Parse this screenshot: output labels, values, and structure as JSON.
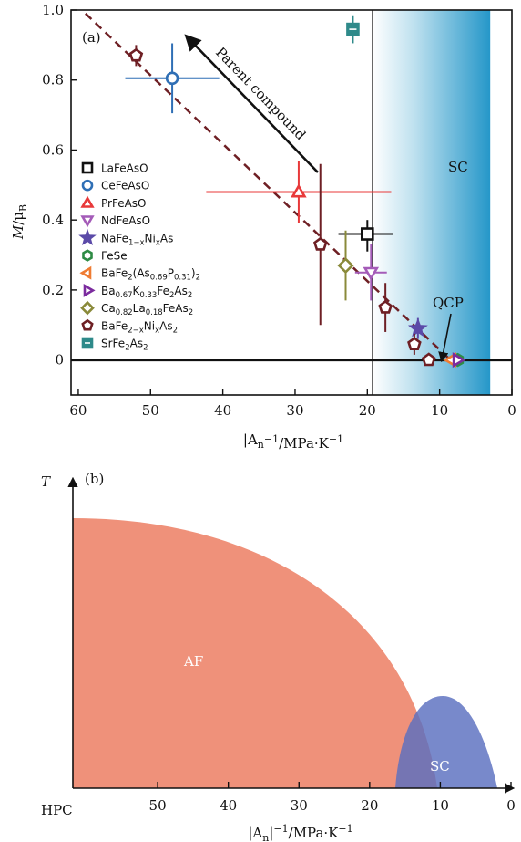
{
  "chart_data": [
    {
      "type": "scatter",
      "panel": "(a)",
      "ylabel": "M/μB",
      "xlabel": "|An|−1/MPa·K−1",
      "xlim": [
        61,
        0
      ],
      "ylim": [
        -0.1,
        1.0
      ],
      "x_reversed": true,
      "xticks": [
        60,
        50,
        40,
        30,
        20,
        10,
        0
      ],
      "xtick_labels": [
        "60",
        "50",
        "40",
        "30",
        "20",
        "10",
        "0"
      ],
      "yticks": [
        0,
        0.2,
        0.4,
        0.6,
        0.8,
        1.0
      ],
      "ytick_labels": [
        "0",
        "0.2",
        "0.4",
        "0.6",
        "0.8",
        "1.0"
      ],
      "region_label": "SC",
      "sc_region": {
        "x_from": 19.3,
        "x_to": 3.0
      },
      "arrow_text": "Parent compound",
      "qcp_label": "QCP",
      "trend_line": {
        "x": [
          59,
          8.5
        ],
        "y": [
          0.99,
          0.0
        ]
      },
      "series": [
        {
          "name": "LaFeAsO",
          "marker": "square",
          "color": "#111111",
          "x": 20.0,
          "y": 0.36,
          "xerr": [
            4.0,
            3.5
          ],
          "yerr": [
            0.05,
            0.04
          ]
        },
        {
          "name": "CeFeAsO",
          "marker": "circle",
          "color": "#2f6fb5",
          "x": 47.0,
          "y": 0.805,
          "xerr": [
            6.5,
            6.5
          ],
          "yerr": [
            0.1,
            0.1
          ]
        },
        {
          "name": "PrFeAsO",
          "marker": "triangle-up",
          "color": "#e8393a",
          "x": 29.5,
          "y": 0.48,
          "xerr": [
            12.8,
            12.8
          ],
          "yerr": [
            0.09,
            0.09
          ]
        },
        {
          "name": "NdFeAsO",
          "marker": "triangle-down",
          "color": "#a45bb8",
          "x": 19.5,
          "y": 0.25,
          "xerr": [
            2.2,
            2.2
          ],
          "yerr": [
            0.08,
            0.08
          ]
        },
        {
          "name": "NaFe1−xNixAs",
          "marker": "star",
          "color": "#5b4aa8",
          "x": 13.0,
          "y": 0.09,
          "xerr": [
            0,
            0
          ],
          "yerr": [
            0.03,
            0.03
          ]
        },
        {
          "name": "FeSe",
          "marker": "hexagon",
          "color": "#2e8b45",
          "x": 7.5,
          "y": 0.0,
          "xerr": [
            0,
            0
          ],
          "yerr": [
            0,
            0
          ]
        },
        {
          "name": "BaFe2(As0.69P0.31)2",
          "marker": "triangle-left",
          "color": "#ef7c33",
          "x": 8.3,
          "y": 0.0,
          "xerr": [
            0,
            0
          ],
          "yerr": [
            0,
            0
          ]
        },
        {
          "name": "Ba0.67K0.33Fe2As2",
          "marker": "triangle-right",
          "color": "#7b2b9e",
          "x": 7.6,
          "y": 0.0,
          "xerr": [
            0,
            0
          ],
          "yerr": [
            0,
            0
          ]
        },
        {
          "name": "Ca0.82La0.18FeAs2",
          "marker": "diamond",
          "color": "#8a8a3a",
          "x": 23.0,
          "y": 0.27,
          "xerr": [
            0,
            0
          ],
          "yerr": [
            0.1,
            0.1
          ]
        },
        {
          "name": "BaFe2−xNixAs2",
          "marker": "pentagon",
          "color": "#6e1f24",
          "x": [
            52.0,
            26.5,
            17.5,
            13.5,
            11.5
          ],
          "y": [
            0.87,
            0.33,
            0.15,
            0.045,
            0.0
          ],
          "yerr": [
            0.03,
            0.23,
            0.07,
            0.03,
            0.0
          ]
        },
        {
          "name": "SrFe2As2",
          "marker": "square-bar",
          "color": "#2e8a8a",
          "x": 22.0,
          "y": 0.945,
          "xerr": [
            0,
            0
          ],
          "yerr": [
            0.04,
            0.04
          ]
        }
      ]
    },
    {
      "type": "area",
      "panel": "(b)",
      "ylabel": "T",
      "xlabel": "|An|−1/MPa·K−1",
      "xlim": [
        62,
        0
      ],
      "x_reversed": true,
      "xticks": [
        50,
        40,
        30,
        20,
        10,
        0
      ],
      "xtick_labels": [
        "50",
        "40",
        "30",
        "20",
        "10",
        "0"
      ],
      "origin_label": "HPC",
      "regions": [
        {
          "name": "AF",
          "color": "#ef917a"
        },
        {
          "name": "SC",
          "color": "#6f80c6"
        }
      ]
    }
  ],
  "legend_labels": [
    [
      "LaFeAsO"
    ],
    [
      "CeFeAsO"
    ],
    [
      "PrFeAsO"
    ],
    [
      "NdFeAsO"
    ],
    [
      "NaFe",
      "1−x",
      "Ni",
      "x",
      "As"
    ],
    [
      "FeSe"
    ],
    [
      "BaFe",
      "2",
      "(As",
      "0.69",
      "P",
      "0.31",
      ")",
      "2"
    ],
    [
      "Ba",
      "0.67",
      "K",
      "0.33",
      "Fe",
      "2",
      "As",
      "2"
    ],
    [
      "Ca",
      "0.82",
      "La",
      "0.18",
      "FeAs",
      "2"
    ],
    [
      "BaFe",
      "2−x",
      "Ni",
      "x",
      "As",
      "2"
    ],
    [
      "SrFe",
      "2",
      "As",
      "2"
    ]
  ],
  "labels": {
    "panel_a": "(a)",
    "panel_b": "(b)",
    "ylabel_a_M": "M",
    "ylabel_a_slash": "/μ",
    "ylabel_a_sub": "B",
    "xlabel_pre": "|A",
    "xlabel_sub": "n",
    "xlabel_sup1": "−1",
    "xlabel_mid": "/MPa·K",
    "xlabel_sup2": "−1",
    "ylabel_b": "T",
    "parent_compound": "Parent compound",
    "qcp": "QCP",
    "sc_a": "SC",
    "af_b": "AF",
    "sc_b": "SC",
    "hpc": "HPC"
  }
}
